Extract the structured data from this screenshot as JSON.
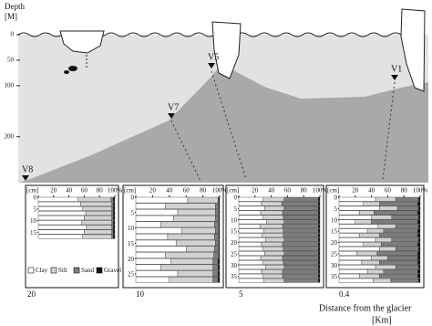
{
  "chart_data": {
    "type": "stacked-bar-panels",
    "y_title": "Depth",
    "y_unit": "[M]",
    "section_ylim": [
      0,
      290
    ],
    "section_yticks": [
      0,
      50,
      100,
      200
    ],
    "x_title": "Distance from the glacier",
    "x_unit": "[Km]",
    "components": [
      {
        "name": "Clay",
        "color": "#ffffff"
      },
      {
        "name": "Silt",
        "color": "#d2d2d2"
      },
      {
        "name": "Sand",
        "color": "#7d7d7d"
      },
      {
        "name": "Gravel",
        "color": "#111111"
      }
    ],
    "xlim": [
      0,
      100
    ],
    "xticks": [
      0,
      20,
      40,
      60,
      80,
      {
        "value": 100,
        "label": "100%"
      }
    ],
    "panels": [
      {
        "station": "V8",
        "distance": "20",
        "unit": "[cm]",
        "ylim": [
          0,
          18
        ],
        "depth_ticks": [
          0,
          5,
          10,
          15
        ],
        "rows": [
          [
            0,
            52,
            43,
            3,
            2
          ],
          [
            2,
            55,
            41,
            2,
            2
          ],
          [
            4,
            58,
            38,
            2,
            2
          ],
          [
            6,
            62,
            34,
            2,
            2
          ],
          [
            8,
            60,
            36,
            2,
            2
          ],
          [
            10,
            57,
            39,
            2,
            2
          ],
          [
            12,
            63,
            33,
            2,
            2
          ],
          [
            14,
            60,
            36,
            2,
            2
          ],
          [
            16,
            58,
            38,
            2,
            2
          ]
        ]
      },
      {
        "station": "V7",
        "distance": "10",
        "unit": "[cm]",
        "ylim": [
          0,
          28
        ],
        "depth_ticks": [
          0,
          5,
          10,
          15,
          20,
          25
        ],
        "rows": [
          [
            0,
            62,
            36,
            1,
            1
          ],
          [
            2,
            35,
            60,
            4,
            1
          ],
          [
            4,
            50,
            45,
            4,
            1
          ],
          [
            6,
            45,
            50,
            4,
            1
          ],
          [
            8,
            30,
            64,
            5,
            1
          ],
          [
            10,
            55,
            40,
            4,
            1
          ],
          [
            12,
            38,
            56,
            5,
            1
          ],
          [
            14,
            48,
            47,
            4,
            1
          ],
          [
            16,
            60,
            34,
            5,
            1
          ],
          [
            18,
            35,
            58,
            6,
            1
          ],
          [
            20,
            42,
            50,
            6,
            2
          ],
          [
            22,
            30,
            62,
            6,
            2
          ],
          [
            24,
            50,
            42,
            6,
            2
          ],
          [
            26,
            40,
            52,
            6,
            2
          ]
        ]
      },
      {
        "station": "V5",
        "distance": "5",
        "unit": "[cm]",
        "ylim": [
          0,
          38
        ],
        "depth_ticks": [
          0,
          5,
          10,
          15,
          20,
          25,
          30,
          35
        ],
        "rows": [
          [
            0,
            30,
            26,
            42,
            2
          ],
          [
            2,
            28,
            25,
            45,
            2
          ],
          [
            4,
            32,
            24,
            42,
            2
          ],
          [
            6,
            27,
            27,
            44,
            2
          ],
          [
            8,
            30,
            25,
            43,
            2
          ],
          [
            10,
            34,
            22,
            42,
            2
          ],
          [
            12,
            26,
            28,
            44,
            2
          ],
          [
            14,
            31,
            24,
            43,
            2
          ],
          [
            16,
            29,
            26,
            43,
            2
          ],
          [
            18,
            33,
            23,
            42,
            2
          ],
          [
            20,
            28,
            26,
            44,
            2
          ],
          [
            22,
            30,
            25,
            43,
            2
          ],
          [
            24,
            32,
            24,
            42,
            2
          ],
          [
            26,
            27,
            27,
            44,
            2
          ],
          [
            28,
            30,
            25,
            43,
            2
          ],
          [
            30,
            33,
            23,
            42,
            2
          ],
          [
            32,
            28,
            26,
            44,
            2
          ],
          [
            34,
            30,
            24,
            44,
            2
          ],
          [
            36,
            31,
            25,
            42,
            2
          ]
        ]
      },
      {
        "station": "V1",
        "distance": "0.4",
        "unit": "[cm]",
        "ylim": [
          0,
          38
        ],
        "depth_ticks": [
          0,
          5,
          10,
          15,
          20,
          25,
          30,
          35
        ],
        "rows": [
          [
            0,
            45,
            25,
            28,
            2
          ],
          [
            2,
            30,
            20,
            47,
            3
          ],
          [
            4,
            50,
            22,
            26,
            2
          ],
          [
            6,
            25,
            18,
            54,
            3
          ],
          [
            8,
            40,
            25,
            33,
            2
          ],
          [
            10,
            20,
            20,
            57,
            3
          ],
          [
            12,
            48,
            22,
            28,
            2
          ],
          [
            14,
            35,
            20,
            42,
            3
          ],
          [
            16,
            25,
            25,
            47,
            3
          ],
          [
            18,
            45,
            20,
            33,
            2
          ],
          [
            20,
            30,
            22,
            45,
            3
          ],
          [
            22,
            50,
            20,
            28,
            2
          ],
          [
            24,
            22,
            25,
            50,
            3
          ],
          [
            26,
            40,
            20,
            37,
            3
          ],
          [
            28,
            28,
            22,
            47,
            3
          ],
          [
            30,
            45,
            25,
            28,
            2
          ],
          [
            32,
            35,
            20,
            42,
            3
          ],
          [
            34,
            25,
            25,
            47,
            3
          ],
          [
            36,
            42,
            22,
            34,
            2
          ]
        ]
      }
    ]
  }
}
